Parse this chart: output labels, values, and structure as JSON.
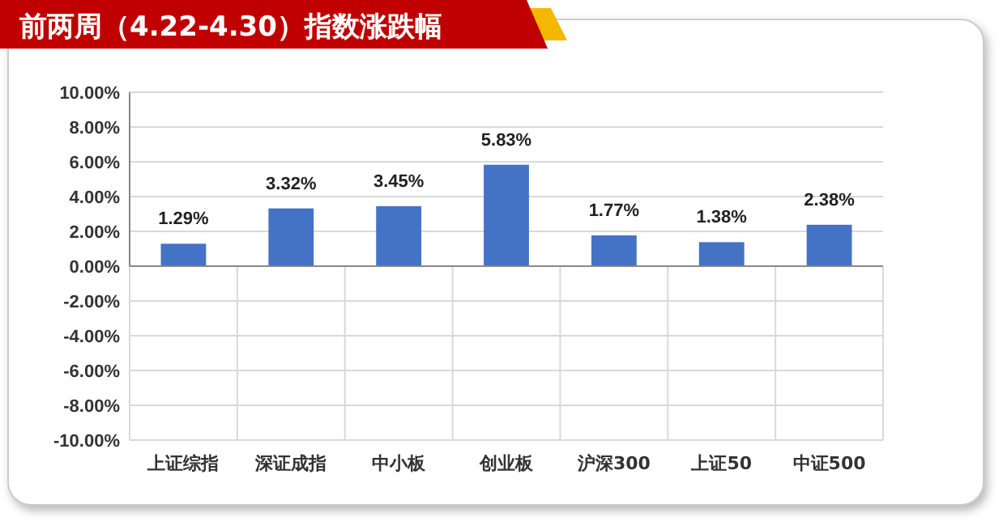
{
  "chart_data": {
    "type": "bar",
    "title": "前两周（4.22-4.30）指数涨跌幅",
    "categories": [
      "上证综指",
      "深证成指",
      "中小板",
      "创业板",
      "沪深300",
      "上证50",
      "中证500"
    ],
    "values": [
      1.29,
      3.32,
      3.45,
      5.83,
      1.77,
      1.38,
      2.38
    ],
    "value_labels": [
      "1.29%",
      "3.32%",
      "3.45%",
      "5.83%",
      "1.77%",
      "1.38%",
      "2.38%"
    ],
    "color": "#4472c4",
    "ylim": [
      -10,
      10
    ],
    "yticks": [
      {
        "value": -10,
        "label": "-10.00%"
      },
      {
        "value": -8,
        "label": "-8.00%"
      },
      {
        "value": -6,
        "label": "-6.00%"
      },
      {
        "value": -4,
        "label": "-4.00%"
      },
      {
        "value": -2,
        "label": "-2.00%"
      },
      {
        "value": 0,
        "label": "0.00%"
      },
      {
        "value": 2,
        "label": "2.00%"
      },
      {
        "value": 4,
        "label": "4.00%"
      },
      {
        "value": 6,
        "label": "6.00%"
      },
      {
        "value": 8,
        "label": "8.00%"
      },
      {
        "value": 10,
        "label": "10.00%"
      }
    ],
    "grid": "y"
  }
}
